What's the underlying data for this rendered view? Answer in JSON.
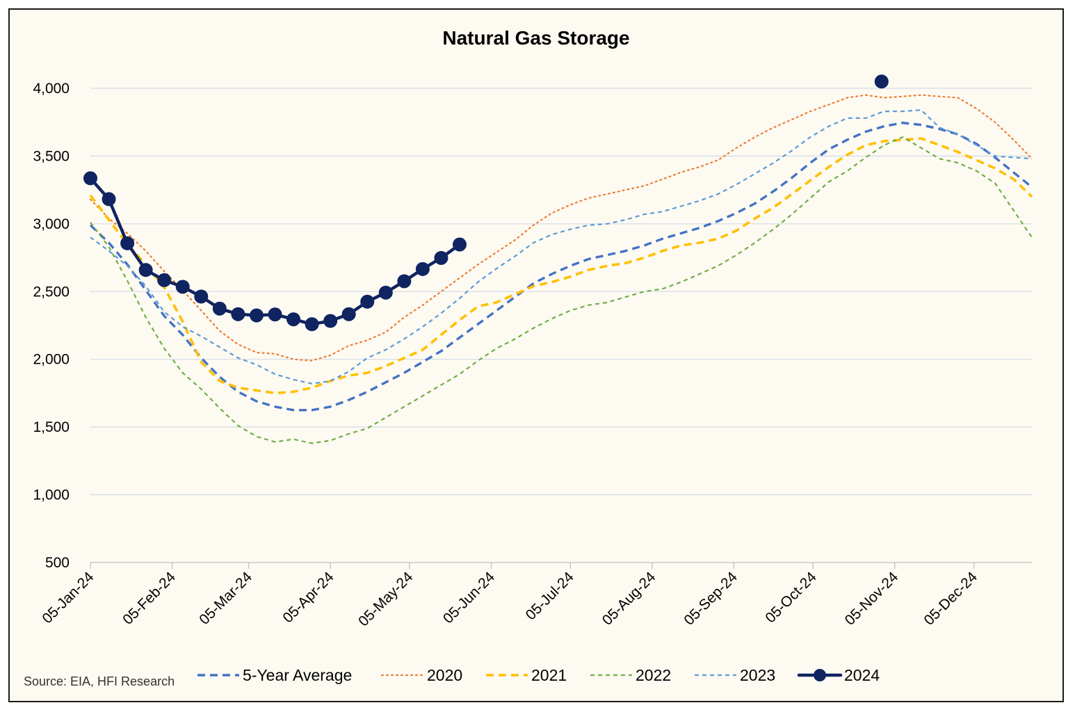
{
  "chart_data": {
    "type": "line",
    "title": "Natural Gas Storage",
    "source": "Source: EIA, HFI Research",
    "xlabel": "",
    "ylabel": "",
    "ylim": [
      500,
      4000
    ],
    "xlim": [
      "2024-01-05",
      "2024-12-27"
    ],
    "y_ticks": [
      500,
      1000,
      1500,
      2000,
      2500,
      3000,
      3500,
      4000
    ],
    "y_tick_labels": [
      "500",
      "1,000",
      "1,500",
      "2,000",
      "2,500",
      "3,000",
      "3,500",
      "4,000"
    ],
    "x_tick_dates": [
      "2024-01-05",
      "2024-02-05",
      "2024-03-05",
      "2024-04-05",
      "2024-05-05",
      "2024-06-05",
      "2024-07-05",
      "2024-08-05",
      "2024-09-05",
      "2024-10-05",
      "2024-11-05",
      "2024-12-05"
    ],
    "x_tick_labels": [
      "05-Jan-24",
      "05-Feb-24",
      "05-Mar-24",
      "05-Apr-24",
      "05-May-24",
      "05-Jun-24",
      "05-Jul-24",
      "05-Aug-24",
      "05-Sep-24",
      "05-Oct-24",
      "05-Nov-24",
      "05-Dec-24"
    ],
    "grid": "horizontal",
    "legend_position": "bottom",
    "series": [
      {
        "name": "5-Year Average",
        "color": "#4472c4",
        "style": "dashed",
        "x": [
          "2024-01-05",
          "2024-01-12",
          "2024-01-19",
          "2024-01-26",
          "2024-02-02",
          "2024-02-09",
          "2024-02-16",
          "2024-02-23",
          "2024-03-01",
          "2024-03-08",
          "2024-03-15",
          "2024-03-22",
          "2024-03-29",
          "2024-04-05",
          "2024-04-12",
          "2024-04-19",
          "2024-04-26",
          "2024-05-03",
          "2024-05-10",
          "2024-05-17",
          "2024-05-24",
          "2024-05-31",
          "2024-06-07",
          "2024-06-14",
          "2024-06-21",
          "2024-06-28",
          "2024-07-05",
          "2024-07-12",
          "2024-07-19",
          "2024-07-26",
          "2024-08-02",
          "2024-08-09",
          "2024-08-16",
          "2024-08-23",
          "2024-08-30",
          "2024-09-06",
          "2024-09-13",
          "2024-09-20",
          "2024-09-27",
          "2024-10-04",
          "2024-10-11",
          "2024-10-18",
          "2024-10-25",
          "2024-11-01",
          "2024-11-08",
          "2024-11-15",
          "2024-11-22",
          "2024-11-29",
          "2024-12-06",
          "2024-12-13",
          "2024-12-20",
          "2024-12-27"
        ],
        "y": [
          2990,
          2860,
          2700,
          2510,
          2320,
          2180,
          2010,
          1870,
          1760,
          1690,
          1650,
          1625,
          1625,
          1650,
          1700,
          1760,
          1830,
          1900,
          1980,
          2060,
          2160,
          2260,
          2360,
          2460,
          2560,
          2630,
          2690,
          2740,
          2770,
          2800,
          2840,
          2890,
          2930,
          2970,
          3020,
          3080,
          3150,
          3240,
          3340,
          3450,
          3550,
          3620,
          3680,
          3720,
          3745,
          3730,
          3700,
          3660,
          3590,
          3490,
          3380,
          3270
        ]
      },
      {
        "name": "2020",
        "color": "#ed7d31",
        "style": "dotted",
        "x": [
          "2024-01-05",
          "2024-01-12",
          "2024-01-19",
          "2024-01-26",
          "2024-02-02",
          "2024-02-09",
          "2024-02-16",
          "2024-02-23",
          "2024-03-01",
          "2024-03-08",
          "2024-03-15",
          "2024-03-22",
          "2024-03-29",
          "2024-04-05",
          "2024-04-12",
          "2024-04-19",
          "2024-04-26",
          "2024-05-03",
          "2024-05-10",
          "2024-05-17",
          "2024-05-24",
          "2024-05-31",
          "2024-06-07",
          "2024-06-14",
          "2024-06-21",
          "2024-06-28",
          "2024-07-05",
          "2024-07-12",
          "2024-07-19",
          "2024-07-26",
          "2024-08-02",
          "2024-08-09",
          "2024-08-16",
          "2024-08-23",
          "2024-08-30",
          "2024-09-06",
          "2024-09-13",
          "2024-09-20",
          "2024-09-27",
          "2024-10-04",
          "2024-10-11",
          "2024-10-18",
          "2024-10-25",
          "2024-11-01",
          "2024-11-08",
          "2024-11-15",
          "2024-11-22",
          "2024-11-29",
          "2024-12-06",
          "2024-12-13",
          "2024-12-20",
          "2024-12-27"
        ],
        "y": [
          3180,
          3040,
          2930,
          2800,
          2650,
          2510,
          2360,
          2210,
          2110,
          2050,
          2040,
          2000,
          1990,
          2030,
          2100,
          2140,
          2200,
          2310,
          2400,
          2500,
          2600,
          2700,
          2790,
          2880,
          2990,
          3080,
          3140,
          3190,
          3220,
          3250,
          3280,
          3330,
          3380,
          3420,
          3470,
          3560,
          3640,
          3710,
          3770,
          3830,
          3880,
          3930,
          3950,
          3930,
          3940,
          3950,
          3940,
          3930,
          3850,
          3750,
          3620,
          3480
        ]
      },
      {
        "name": "2021",
        "color": "#ffc000",
        "style": "dashed",
        "x": [
          "2024-01-05",
          "2024-01-12",
          "2024-01-19",
          "2024-01-26",
          "2024-02-02",
          "2024-02-09",
          "2024-02-16",
          "2024-02-23",
          "2024-03-01",
          "2024-03-08",
          "2024-03-15",
          "2024-03-22",
          "2024-03-29",
          "2024-04-05",
          "2024-04-12",
          "2024-04-19",
          "2024-04-26",
          "2024-05-03",
          "2024-05-10",
          "2024-05-17",
          "2024-05-24",
          "2024-05-31",
          "2024-06-07",
          "2024-06-14",
          "2024-06-21",
          "2024-06-28",
          "2024-07-05",
          "2024-07-12",
          "2024-07-19",
          "2024-07-26",
          "2024-08-02",
          "2024-08-09",
          "2024-08-16",
          "2024-08-23",
          "2024-08-30",
          "2024-09-06",
          "2024-09-13",
          "2024-09-20",
          "2024-09-27",
          "2024-10-04",
          "2024-10-11",
          "2024-10-18",
          "2024-10-25",
          "2024-11-01",
          "2024-11-08",
          "2024-11-15",
          "2024-11-22",
          "2024-11-29",
          "2024-12-06",
          "2024-12-13",
          "2024-12-20",
          "2024-12-27"
        ],
        "y": [
          3210,
          3030,
          2850,
          2700,
          2530,
          2280,
          1980,
          1840,
          1790,
          1770,
          1750,
          1760,
          1790,
          1840,
          1880,
          1900,
          1950,
          2010,
          2070,
          2180,
          2290,
          2390,
          2420,
          2480,
          2540,
          2570,
          2610,
          2660,
          2690,
          2710,
          2750,
          2800,
          2840,
          2860,
          2890,
          2950,
          3040,
          3120,
          3220,
          3320,
          3420,
          3510,
          3580,
          3610,
          3620,
          3630,
          3580,
          3530,
          3470,
          3410,
          3330,
          3200
        ]
      },
      {
        "name": "2022",
        "color": "#70ad47",
        "style": "dashed",
        "x": [
          "2024-01-05",
          "2024-01-12",
          "2024-01-19",
          "2024-01-26",
          "2024-02-02",
          "2024-02-09",
          "2024-02-16",
          "2024-02-23",
          "2024-03-01",
          "2024-03-08",
          "2024-03-15",
          "2024-03-22",
          "2024-03-29",
          "2024-04-05",
          "2024-04-12",
          "2024-04-19",
          "2024-04-26",
          "2024-05-03",
          "2024-05-10",
          "2024-05-17",
          "2024-05-24",
          "2024-05-31",
          "2024-06-07",
          "2024-06-14",
          "2024-06-21",
          "2024-06-28",
          "2024-07-05",
          "2024-07-12",
          "2024-07-19",
          "2024-07-26",
          "2024-08-02",
          "2024-08-09",
          "2024-08-16",
          "2024-08-23",
          "2024-08-30",
          "2024-09-06",
          "2024-09-13",
          "2024-09-20",
          "2024-09-27",
          "2024-10-04",
          "2024-10-11",
          "2024-10-18",
          "2024-10-25",
          "2024-11-01",
          "2024-11-08",
          "2024-11-15",
          "2024-11-22",
          "2024-11-29",
          "2024-12-06",
          "2024-12-13",
          "2024-12-20",
          "2024-12-27"
        ],
        "y": [
          3010,
          2830,
          2580,
          2310,
          2080,
          1900,
          1780,
          1640,
          1510,
          1430,
          1390,
          1410,
          1380,
          1400,
          1450,
          1490,
          1570,
          1650,
          1730,
          1810,
          1890,
          1990,
          2080,
          2150,
          2230,
          2300,
          2360,
          2400,
          2420,
          2460,
          2500,
          2520,
          2570,
          2630,
          2690,
          2770,
          2860,
          2960,
          3070,
          3190,
          3310,
          3390,
          3490,
          3580,
          3640,
          3560,
          3480,
          3450,
          3390,
          3300,
          3100,
          2900
        ]
      },
      {
        "name": "2023",
        "color": "#5b9bd5",
        "style": "dashed",
        "x": [
          "2024-01-05",
          "2024-01-12",
          "2024-01-19",
          "2024-01-26",
          "2024-02-02",
          "2024-02-09",
          "2024-02-16",
          "2024-02-23",
          "2024-03-01",
          "2024-03-08",
          "2024-03-15",
          "2024-03-22",
          "2024-03-29",
          "2024-04-05",
          "2024-04-12",
          "2024-04-19",
          "2024-04-26",
          "2024-05-03",
          "2024-05-10",
          "2024-05-17",
          "2024-05-24",
          "2024-05-31",
          "2024-06-07",
          "2024-06-14",
          "2024-06-21",
          "2024-06-28",
          "2024-07-05",
          "2024-07-12",
          "2024-07-19",
          "2024-07-26",
          "2024-08-02",
          "2024-08-09",
          "2024-08-16",
          "2024-08-23",
          "2024-08-30",
          "2024-09-06",
          "2024-09-13",
          "2024-09-20",
          "2024-09-27",
          "2024-10-04",
          "2024-10-11",
          "2024-10-18",
          "2024-10-25",
          "2024-11-01",
          "2024-11-08",
          "2024-11-15",
          "2024-11-22",
          "2024-11-29",
          "2024-12-06",
          "2024-12-13",
          "2024-12-20",
          "2024-12-27"
        ],
        "y": [
          2900,
          2800,
          2690,
          2540,
          2350,
          2240,
          2170,
          2090,
          2010,
          1960,
          1890,
          1850,
          1820,
          1840,
          1910,
          2010,
          2070,
          2150,
          2240,
          2340,
          2450,
          2570,
          2670,
          2760,
          2860,
          2920,
          2960,
          2990,
          3000,
          3030,
          3070,
          3090,
          3130,
          3170,
          3220,
          3290,
          3370,
          3450,
          3540,
          3640,
          3720,
          3780,
          3780,
          3830,
          3830,
          3840,
          3710,
          3660,
          3580,
          3500,
          3490,
          3480
        ]
      },
      {
        "name": "2024",
        "color": "#0f2460",
        "style": "solid-markers",
        "x": [
          "2024-01-05",
          "2024-01-12",
          "2024-01-19",
          "2024-01-26",
          "2024-02-02",
          "2024-02-09",
          "2024-02-16",
          "2024-02-23",
          "2024-03-01",
          "2024-03-08",
          "2024-03-15",
          "2024-03-22",
          "2024-03-29",
          "2024-04-05",
          "2024-04-12",
          "2024-04-19",
          "2024-04-26",
          "2024-05-03",
          "2024-05-10",
          "2024-05-17",
          "2024-05-24"
        ],
        "y": [
          3336,
          3182,
          2856,
          2659,
          2584,
          2535,
          2463,
          2374,
          2333,
          2324,
          2331,
          2295,
          2259,
          2283,
          2333,
          2425,
          2492,
          2576,
          2666,
          2748,
          2847
        ]
      },
      {
        "name": "",
        "color": "#0f2460",
        "style": "marker-only",
        "x": [
          "2024-10-31"
        ],
        "y": [
          4050
        ]
      }
    ]
  }
}
